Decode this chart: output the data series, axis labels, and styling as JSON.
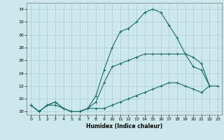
{
  "title": "",
  "xlabel": "Humidex (Indice chaleur)",
  "ylabel": "",
  "background_color": "#cde8ec",
  "grid_color": "#aacdd4",
  "line_color": "#1a6b6b",
  "xlim": [
    -0.5,
    23.5
  ],
  "ylim": [
    17.5,
    35.0
  ],
  "yticks": [
    18,
    20,
    22,
    24,
    26,
    28,
    30,
    32,
    34
  ],
  "xticks": [
    0,
    1,
    2,
    3,
    4,
    5,
    6,
    7,
    8,
    9,
    10,
    11,
    12,
    13,
    14,
    15,
    16,
    17,
    18,
    19,
    20,
    21,
    22,
    23
  ],
  "line1_x": [
    0,
    1,
    2,
    3,
    4,
    5,
    6,
    7,
    8,
    9,
    10,
    11,
    12,
    13,
    14,
    15,
    16,
    17,
    18,
    19,
    20,
    21,
    22
  ],
  "line1_y": [
    19.0,
    18.0,
    19.0,
    19.5,
    18.5,
    18.0,
    18.0,
    18.5,
    20.5,
    24.5,
    28.0,
    30.5,
    31.0,
    32.0,
    33.5,
    34.0,
    33.5,
    31.5,
    29.5,
    27.0,
    25.0,
    24.5,
    22.0
  ],
  "line2_x": [
    0,
    1,
    2,
    3,
    4,
    5,
    6,
    7,
    8,
    9,
    10,
    11,
    12,
    13,
    14,
    15,
    16,
    17,
    18,
    19,
    20,
    21,
    22
  ],
  "line2_y": [
    19.0,
    18.0,
    19.0,
    19.5,
    18.5,
    18.0,
    18.0,
    18.5,
    19.5,
    22.5,
    25.0,
    25.5,
    26.0,
    26.5,
    27.0,
    27.0,
    27.0,
    27.0,
    27.0,
    27.0,
    26.5,
    25.5,
    22.0
  ],
  "line3_x": [
    0,
    1,
    2,
    3,
    4,
    5,
    6,
    7,
    8,
    9,
    10,
    11,
    12,
    13,
    14,
    15,
    16,
    17,
    18,
    19,
    20,
    21,
    22,
    23
  ],
  "line3_y": [
    19.0,
    18.0,
    19.0,
    19.0,
    18.5,
    18.0,
    18.0,
    18.5,
    18.5,
    18.5,
    19.0,
    19.5,
    20.0,
    20.5,
    21.0,
    21.5,
    22.0,
    22.5,
    22.5,
    22.0,
    21.5,
    21.0,
    22.0,
    22.0
  ]
}
